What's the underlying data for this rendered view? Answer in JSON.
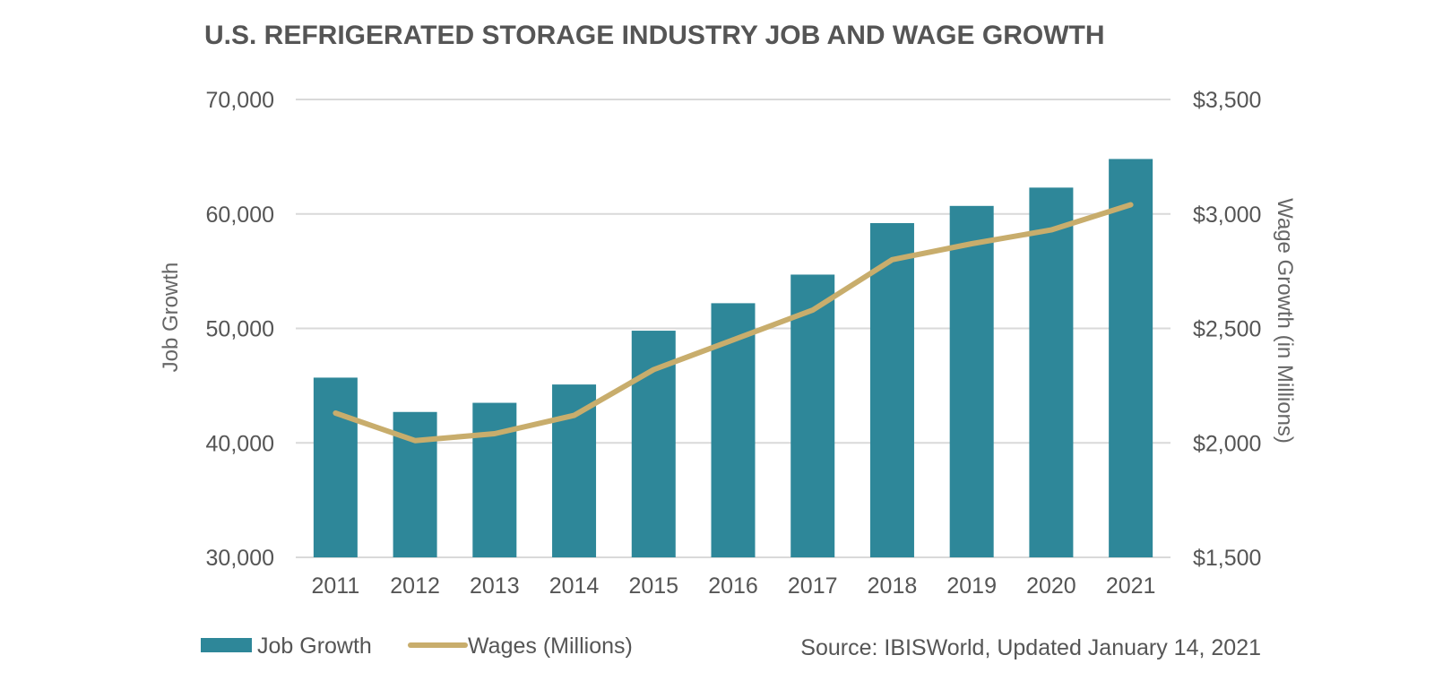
{
  "chart_data": {
    "type": "bar",
    "title": "U.S. REFRIGERATED STORAGE INDUSTRY JOB AND WAGE GROWTH",
    "categories": [
      "2011",
      "2012",
      "2013",
      "2014",
      "2015",
      "2016",
      "2017",
      "2018",
      "2019",
      "2020",
      "2021"
    ],
    "series": [
      {
        "name": "Job Growth",
        "type": "bar",
        "axis": "left",
        "color": "#2e8799",
        "values": [
          45700,
          42700,
          43500,
          45100,
          49800,
          52200,
          54700,
          59200,
          60700,
          62300,
          64800
        ]
      },
      {
        "name": "Wages (Millions)",
        "type": "line",
        "axis": "right",
        "color": "#c8ad6c",
        "values": [
          2130,
          2010,
          2040,
          2120,
          2320,
          2450,
          2580,
          2800,
          2870,
          2930,
          3040
        ]
      }
    ],
    "y_left": {
      "label": "Job Growth",
      "range": [
        30000,
        70000
      ],
      "ticks": [
        30000,
        40000,
        50000,
        60000,
        70000
      ],
      "tick_labels": [
        "30,000",
        "40,000",
        "50,000",
        "60,000",
        "70,000"
      ]
    },
    "y_right": {
      "label": "Wage Growth (in Millions)",
      "range": [
        1500,
        3500
      ],
      "ticks": [
        1500,
        2000,
        2500,
        3000,
        3500
      ],
      "tick_labels": [
        "$1,500",
        "$2,000",
        "$2,500",
        "$3,000",
        "$3,500"
      ]
    },
    "grid": true,
    "legend_position": "bottom-left",
    "source": "Source: IBISWorld, Updated January 14, 2021",
    "gridline_color": "#d9d9d9"
  }
}
